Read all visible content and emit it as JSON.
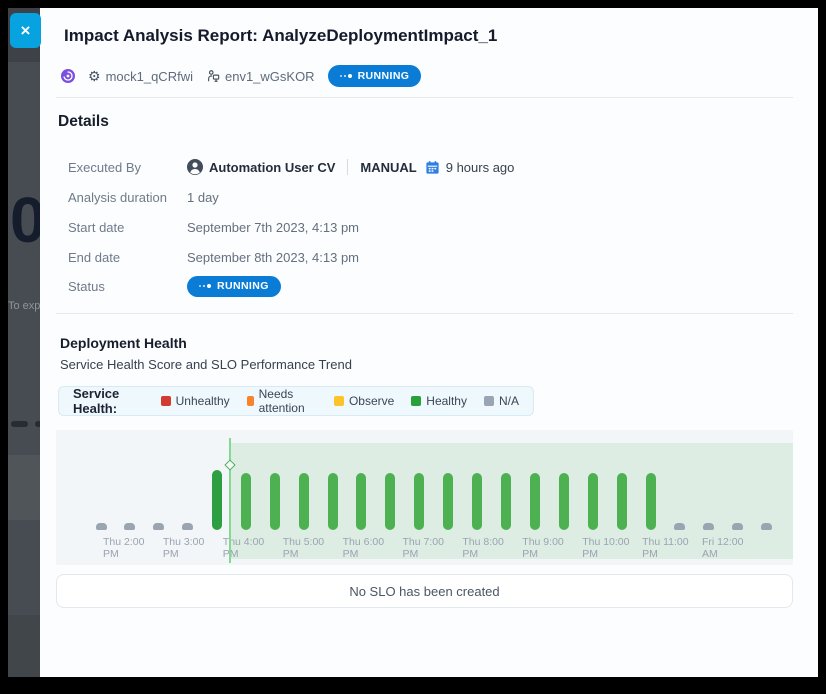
{
  "backdrop": {
    "partial_count": "0",
    "partial_text": "To exp"
  },
  "modal": {
    "title": "Impact Analysis Report: AnalyzeDeploymentImpact_1",
    "close_glyph": "×",
    "meta": {
      "service": "mock1_qCRfwi",
      "environment": "env1_wGsKOR",
      "status": "RUNNING"
    }
  },
  "details": {
    "heading": "Details",
    "rows": {
      "executed_by": {
        "label": "Executed By",
        "user": "Automation User CV",
        "trigger": "MANUAL",
        "time_ago": "9 hours ago"
      },
      "duration": {
        "label": "Analysis duration",
        "value": "1 day"
      },
      "start": {
        "label": "Start date",
        "value": "September 7th 2023, 4:13 pm"
      },
      "end": {
        "label": "End date",
        "value": "September 8th 2023, 4:13 pm"
      },
      "status": {
        "label": "Status",
        "badge": "RUNNING"
      }
    }
  },
  "health": {
    "heading": "Deployment Health",
    "subtitle": "Service Health Score and SLO Performance Trend",
    "legend_title": "Service Health:",
    "legend_items": [
      {
        "label": "Unhealthy",
        "color": "#d23b32"
      },
      {
        "label": "Needs attention",
        "color": "#f9832c"
      },
      {
        "label": "Observe",
        "color": "#fdc32b"
      },
      {
        "label": "Healthy",
        "color": "#2aa03a"
      },
      {
        "label": "N/A",
        "color": "#9ba4b3"
      }
    ],
    "slo_empty_message": "No SLO has been created"
  },
  "chart_data": {
    "type": "bar",
    "title": "Service Health Score and SLO Performance Trend",
    "categories": [
      "Thu 2:00 PM",
      "Thu 2:30 PM",
      "Thu 3:00 PM",
      "Thu 3:30 PM",
      "Thu 4:00 PM",
      "Thu 4:30 PM",
      "Thu 5:00 PM",
      "Thu 5:30 PM",
      "Thu 6:00 PM",
      "Thu 6:30 PM",
      "Thu 7:00 PM",
      "Thu 7:30 PM",
      "Thu 8:00 PM",
      "Thu 8:30 PM",
      "Thu 9:00 PM",
      "Thu 9:30 PM",
      "Thu 10:00 PM",
      "Thu 10:30 PM",
      "Thu 11:00 PM",
      "Thu 11:30 PM",
      "Fri 12:00 AM",
      "Fri 12:30 AM",
      "Fri 1:00 AM",
      "Fri 1:30 AM"
    ],
    "statuses": [
      "na",
      "na",
      "na",
      "na",
      "healthy",
      "healthy",
      "healthy",
      "healthy",
      "healthy",
      "healthy",
      "healthy",
      "healthy",
      "healthy",
      "healthy",
      "healthy",
      "healthy",
      "healthy",
      "healthy",
      "healthy",
      "healthy",
      "na",
      "na",
      "na",
      "na"
    ],
    "emphasis_index": 4,
    "deployment_marker": {
      "time": "Thu 4:13 PM",
      "shaded_after": true
    },
    "x_tick_labels": [
      {
        "l1": "Thu 2:00",
        "l2": "PM"
      },
      {
        "l1": "Thu 3:00",
        "l2": "PM"
      },
      {
        "l1": "Thu 4:00",
        "l2": "PM"
      },
      {
        "l1": "Thu 5:00",
        "l2": "PM"
      },
      {
        "l1": "Thu 6:00",
        "l2": "PM"
      },
      {
        "l1": "Thu 7:00",
        "l2": "PM"
      },
      {
        "l1": "Thu 8:00",
        "l2": "PM"
      },
      {
        "l1": "Thu 9:00",
        "l2": "PM"
      },
      {
        "l1": "Thu 10:00",
        "l2": "PM"
      },
      {
        "l1": "Thu 11:00",
        "l2": "PM"
      },
      {
        "l1": "Fri 12:00",
        "l2": "AM"
      }
    ],
    "colors": {
      "healthy": "#4db152",
      "healthy_emphasis": "#2d9e41",
      "na": "#9aa5b1",
      "marker_line": "#82d98f",
      "shade": "rgba(96,178,96,0.13)"
    },
    "ylabel": "",
    "xlabel": "",
    "grid": false,
    "legend_position": "top"
  },
  "colors": {
    "badge_blue": "#0b7cd6",
    "close_cyan": "#07a2e0",
    "source_purple": "#7c4fe0",
    "calendar_blue": "#2f7fe0"
  }
}
